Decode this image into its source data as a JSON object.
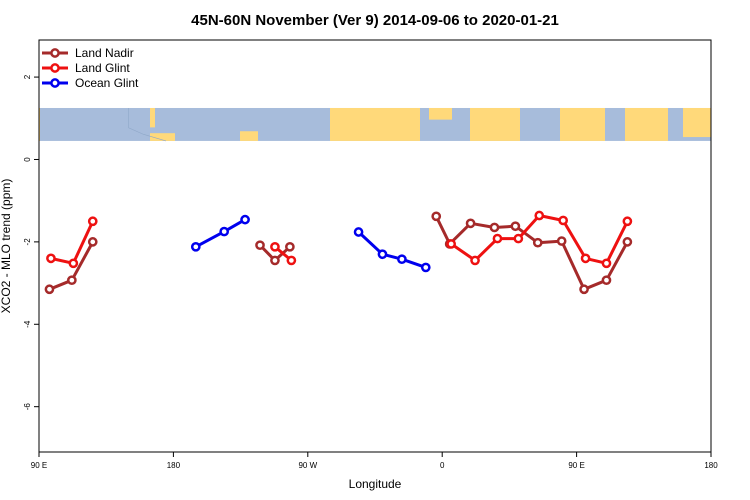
{
  "chart_data": {
    "type": "line",
    "title": "45N-60N November (Ver 9)   2014-09-06 to 2020-01-21",
    "xlabel": "Longitude",
    "ylabel": "XCO2 - MLO trend (ppm)",
    "xlim": [
      90,
      540
    ],
    "ylim": [
      -7.1,
      2.9
    ],
    "x_ticks": [
      {
        "value": 90,
        "label": "90 E"
      },
      {
        "value": 180,
        "label": "180"
      },
      {
        "value": 270,
        "label": "90 W"
      },
      {
        "value": 360,
        "label": "0"
      },
      {
        "value": 450,
        "label": "90 E"
      },
      {
        "value": 540,
        "label": "180"
      }
    ],
    "y_ticks": [
      {
        "value": 2,
        "label": "2"
      },
      {
        "value": 0,
        "label": "0"
      },
      {
        "value": -2,
        "label": "-2"
      },
      {
        "value": -4,
        "label": "-4"
      },
      {
        "value": -6,
        "label": "-6"
      }
    ],
    "legend_position": "top-left",
    "map_strip": {
      "y_top": 1.25,
      "y_bottom": 0.45,
      "land_color": "#FFD97A",
      "ocean_color": "#A7BCDB"
    },
    "series": [
      {
        "name": "Land Nadir",
        "color": "#A52A2A",
        "segments": [
          [
            [
              97,
              -3.15
            ],
            [
              112,
              -2.93
            ],
            [
              126,
              -2.0
            ]
          ],
          [
            [
              238,
              -2.08
            ],
            [
              248,
              -2.45
            ],
            [
              258,
              -2.12
            ]
          ],
          [
            [
              356,
              -1.38
            ],
            [
              365,
              -2.05
            ],
            [
              379,
              -1.55
            ],
            [
              395,
              -1.65
            ],
            [
              409,
              -1.62
            ],
            [
              424,
              -2.02
            ],
            [
              440,
              -1.98
            ],
            [
              455,
              -3.15
            ],
            [
              470,
              -2.93
            ],
            [
              484,
              -2.0
            ]
          ]
        ]
      },
      {
        "name": "Land Glint",
        "color": "#EE1111",
        "segments": [
          [
            [
              98,
              -2.4
            ],
            [
              113,
              -2.52
            ],
            [
              126,
              -1.5
            ]
          ],
          [
            [
              248,
              -2.12
            ],
            [
              259,
              -2.45
            ]
          ],
          [
            [
              366,
              -2.05
            ],
            [
              382,
              -2.45
            ],
            [
              397,
              -1.92
            ],
            [
              411,
              -1.92
            ],
            [
              425,
              -1.36
            ],
            [
              441,
              -1.48
            ],
            [
              456,
              -2.4
            ],
            [
              470,
              -2.52
            ],
            [
              484,
              -1.5
            ]
          ]
        ]
      },
      {
        "name": "Ocean Glint",
        "color": "#0000EE",
        "segments": [
          [
            [
              195,
              -2.12
            ],
            [
              214,
              -1.75
            ],
            [
              228,
              -1.46
            ]
          ],
          [
            [
              304,
              -1.76
            ],
            [
              320,
              -2.3
            ],
            [
              333,
              -2.42
            ],
            [
              349,
              -2.62
            ]
          ]
        ]
      }
    ]
  }
}
